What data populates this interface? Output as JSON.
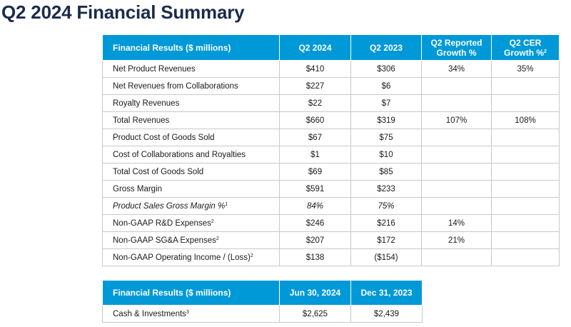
{
  "title": "Q2 2024 Financial Summary",
  "results": {
    "headers": [
      "Financial Results ($ millions)",
      "Q2 2024",
      "Q2 2023",
      "Q2 Reported Growth %",
      "Q2 CER Growth %"
    ],
    "cer_footnote": "2",
    "rows": [
      {
        "label": "Net Product Revenues",
        "sup": "",
        "q2_2024": "$410",
        "q2_2023": "$306",
        "reported": "34%",
        "cer": "35%",
        "italic": false
      },
      {
        "label": "Net Revenues from Collaborations",
        "sup": "",
        "q2_2024": "$227",
        "q2_2023": "$6",
        "reported": "",
        "cer": "",
        "italic": false
      },
      {
        "label": "Royalty Revenues",
        "sup": "",
        "q2_2024": "$22",
        "q2_2023": "$7",
        "reported": "",
        "cer": "",
        "italic": false
      },
      {
        "label": "Total Revenues",
        "sup": "",
        "q2_2024": "$660",
        "q2_2023": "$319",
        "reported": "107%",
        "cer": "108%",
        "italic": false
      },
      {
        "label": "Product Cost of Goods Sold",
        "sup": "",
        "q2_2024": "$67",
        "q2_2023": "$75",
        "reported": "",
        "cer": "",
        "italic": false
      },
      {
        "label": "Cost of Collaborations and Royalties",
        "sup": "",
        "q2_2024": "$1",
        "q2_2023": "$10",
        "reported": "",
        "cer": "",
        "italic": false
      },
      {
        "label": "Total Cost of Goods Sold",
        "sup": "",
        "q2_2024": "$69",
        "q2_2023": "$85",
        "reported": "",
        "cer": "",
        "italic": false
      },
      {
        "label": "Gross Margin",
        "sup": "",
        "q2_2024": "$591",
        "q2_2023": "$233",
        "reported": "",
        "cer": "",
        "italic": false
      },
      {
        "label": "Product Sales Gross Margin %",
        "sup": "1",
        "q2_2024": "84%",
        "q2_2023": "75%",
        "reported": "",
        "cer": "",
        "italic": true
      },
      {
        "label": "Non-GAAP R&D Expenses",
        "sup": "2",
        "q2_2024": "$246",
        "q2_2023": "$216",
        "reported": "14%",
        "cer": "",
        "italic": false
      },
      {
        "label": "Non-GAAP SG&A Expenses",
        "sup": "2",
        "q2_2024": "$207",
        "q2_2023": "$172",
        "reported": "21%",
        "cer": "",
        "italic": false
      },
      {
        "label": "Non-GAAP Operating Income / (Loss)",
        "sup": "2",
        "q2_2024": "$138",
        "q2_2023": "($154)",
        "reported": "",
        "cer": "",
        "italic": false
      }
    ]
  },
  "balance": {
    "headers": [
      "Financial Results ($ millions)",
      "Jun 30, 2024",
      "Dec 31, 2023"
    ],
    "rows": [
      {
        "label": "Cash & Investments",
        "sup": "3",
        "jun_2024": "$2,625",
        "dec_2023": "$2,439"
      }
    ]
  },
  "colors": {
    "header_bg": "#0099d8",
    "title": "#1c2b4a",
    "border": "#c9c9c9"
  }
}
